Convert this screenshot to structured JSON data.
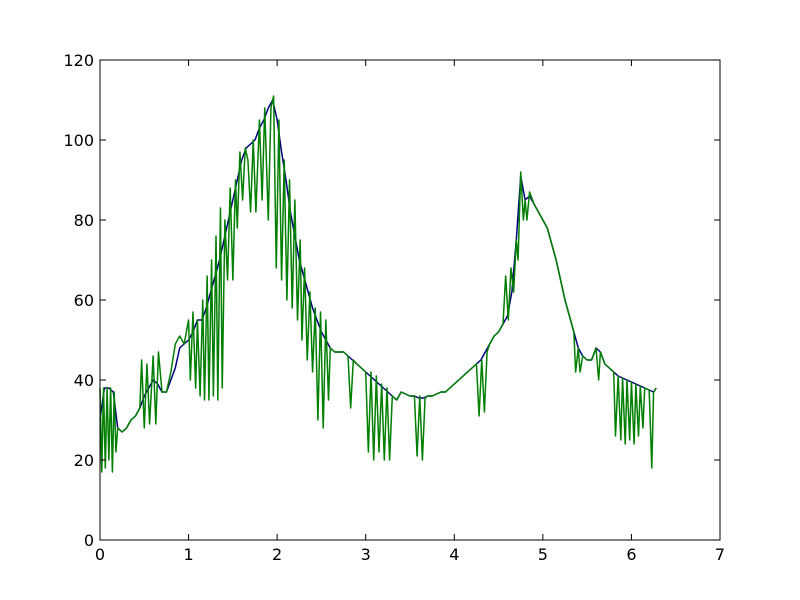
{
  "chart_data": {
    "type": "line",
    "title": "",
    "xlabel": "",
    "ylabel": "",
    "xlim": [
      0,
      7
    ],
    "ylim": [
      0,
      120
    ],
    "grid": false,
    "legend": "none",
    "x_ticks": [
      "0",
      "1",
      "2",
      "3",
      "4",
      "5",
      "6",
      "7"
    ],
    "y_ticks": [
      "0",
      "20",
      "40",
      "60",
      "80",
      "100",
      "120"
    ],
    "series": [
      {
        "color": "#00007f",
        "points": [
          [
            0.0,
            30
          ],
          [
            0.05,
            38
          ],
          [
            0.1,
            38
          ],
          [
            0.15,
            37
          ],
          [
            0.2,
            28
          ],
          [
            0.25,
            27
          ],
          [
            0.3,
            28
          ],
          [
            0.35,
            30
          ],
          [
            0.4,
            31
          ],
          [
            0.45,
            33
          ],
          [
            0.5,
            36
          ],
          [
            0.55,
            38
          ],
          [
            0.6,
            40
          ],
          [
            0.65,
            39
          ],
          [
            0.7,
            37
          ],
          [
            0.75,
            37
          ],
          [
            0.8,
            40
          ],
          [
            0.85,
            43
          ],
          [
            0.9,
            48
          ],
          [
            0.95,
            49
          ],
          [
            1.0,
            50
          ],
          [
            1.05,
            52
          ],
          [
            1.1,
            55
          ],
          [
            1.15,
            55
          ],
          [
            1.2,
            58
          ],
          [
            1.25,
            62
          ],
          [
            1.3,
            66
          ],
          [
            1.35,
            70
          ],
          [
            1.4,
            75
          ],
          [
            1.45,
            80
          ],
          [
            1.5,
            85
          ],
          [
            1.55,
            90
          ],
          [
            1.6,
            95
          ],
          [
            1.65,
            98
          ],
          [
            1.7,
            99
          ],
          [
            1.75,
            100
          ],
          [
            1.8,
            103
          ],
          [
            1.85,
            105
          ],
          [
            1.9,
            108
          ],
          [
            1.95,
            110
          ],
          [
            2.0,
            105
          ],
          [
            2.05,
            97
          ],
          [
            2.1,
            90
          ],
          [
            2.15,
            82
          ],
          [
            2.2,
            76
          ],
          [
            2.25,
            70
          ],
          [
            2.3,
            66
          ],
          [
            2.35,
            62
          ],
          [
            2.4,
            58
          ],
          [
            2.45,
            55
          ],
          [
            2.5,
            52
          ],
          [
            2.55,
            50
          ],
          [
            2.6,
            48
          ],
          [
            2.65,
            47
          ],
          [
            2.7,
            47
          ],
          [
            2.75,
            47
          ],
          [
            2.8,
            46
          ],
          [
            2.85,
            45
          ],
          [
            2.9,
            44
          ],
          [
            2.95,
            43
          ],
          [
            3.0,
            42
          ],
          [
            3.05,
            41
          ],
          [
            3.1,
            40
          ],
          [
            3.15,
            39
          ],
          [
            3.2,
            38
          ],
          [
            3.25,
            37
          ],
          [
            3.3,
            36
          ],
          [
            3.35,
            35
          ],
          [
            3.4,
            37
          ],
          [
            3.45,
            36.5
          ],
          [
            3.5,
            36
          ],
          [
            3.55,
            36
          ],
          [
            3.6,
            35.5
          ],
          [
            3.65,
            35.5
          ],
          [
            3.7,
            36
          ],
          [
            3.75,
            36
          ],
          [
            3.8,
            36.5
          ],
          [
            3.85,
            37
          ],
          [
            3.9,
            37
          ],
          [
            3.95,
            38
          ],
          [
            4.0,
            39
          ],
          [
            4.05,
            40
          ],
          [
            4.1,
            41
          ],
          [
            4.15,
            42
          ],
          [
            4.2,
            43
          ],
          [
            4.25,
            44
          ],
          [
            4.3,
            45
          ],
          [
            4.35,
            47
          ],
          [
            4.4,
            49
          ],
          [
            4.45,
            51
          ],
          [
            4.5,
            52
          ],
          [
            4.55,
            54
          ],
          [
            4.6,
            56
          ],
          [
            4.65,
            62
          ],
          [
            4.7,
            75
          ],
          [
            4.75,
            91
          ],
          [
            4.8,
            85
          ],
          [
            4.85,
            86
          ],
          [
            4.9,
            84
          ],
          [
            4.95,
            82
          ],
          [
            5.0,
            80
          ],
          [
            5.05,
            78
          ],
          [
            5.1,
            74
          ],
          [
            5.15,
            70
          ],
          [
            5.2,
            65
          ],
          [
            5.25,
            60
          ],
          [
            5.3,
            56
          ],
          [
            5.35,
            52
          ],
          [
            5.4,
            48
          ],
          [
            5.45,
            46
          ],
          [
            5.5,
            45
          ],
          [
            5.55,
            45
          ],
          [
            5.6,
            48
          ],
          [
            5.65,
            47
          ],
          [
            5.7,
            44
          ],
          [
            5.75,
            43
          ],
          [
            5.8,
            42
          ],
          [
            5.85,
            41
          ],
          [
            5.9,
            40.5
          ],
          [
            5.95,
            40
          ],
          [
            6.0,
            39.5
          ],
          [
            6.05,
            39
          ],
          [
            6.1,
            38.5
          ],
          [
            6.15,
            38
          ],
          [
            6.2,
            37.5
          ],
          [
            6.25,
            37
          ],
          [
            6.28,
            38
          ]
        ]
      },
      {
        "color": "#007f00",
        "points": [
          [
            0.0,
            38
          ],
          [
            0.02,
            17
          ],
          [
            0.04,
            38
          ],
          [
            0.06,
            18
          ],
          [
            0.08,
            38
          ],
          [
            0.1,
            20
          ],
          [
            0.12,
            38
          ],
          [
            0.14,
            17
          ],
          [
            0.16,
            37
          ],
          [
            0.18,
            22
          ],
          [
            0.2,
            28
          ],
          [
            0.25,
            27
          ],
          [
            0.3,
            28
          ],
          [
            0.35,
            30
          ],
          [
            0.4,
            31
          ],
          [
            0.45,
            33
          ],
          [
            0.47,
            45
          ],
          [
            0.5,
            28
          ],
          [
            0.53,
            44
          ],
          [
            0.56,
            29
          ],
          [
            0.6,
            46
          ],
          [
            0.63,
            29
          ],
          [
            0.66,
            47
          ],
          [
            0.7,
            37
          ],
          [
            0.75,
            37
          ],
          [
            0.8,
            42
          ],
          [
            0.85,
            49
          ],
          [
            0.9,
            51
          ],
          [
            0.95,
            49
          ],
          [
            1.0,
            55
          ],
          [
            1.02,
            40
          ],
          [
            1.05,
            57
          ],
          [
            1.08,
            38
          ],
          [
            1.1,
            55
          ],
          [
            1.13,
            36
          ],
          [
            1.16,
            60
          ],
          [
            1.18,
            35
          ],
          [
            1.21,
            66
          ],
          [
            1.23,
            35
          ],
          [
            1.26,
            70
          ],
          [
            1.28,
            36
          ],
          [
            1.31,
            76
          ],
          [
            1.33,
            35
          ],
          [
            1.36,
            83
          ],
          [
            1.38,
            38
          ],
          [
            1.41,
            80
          ],
          [
            1.44,
            65
          ],
          [
            1.47,
            88
          ],
          [
            1.5,
            65
          ],
          [
            1.53,
            90
          ],
          [
            1.55,
            78
          ],
          [
            1.58,
            97
          ],
          [
            1.61,
            85
          ],
          [
            1.64,
            98
          ],
          [
            1.67,
            95
          ],
          [
            1.7,
            82
          ],
          [
            1.73,
            100
          ],
          [
            1.76,
            82
          ],
          [
            1.8,
            105
          ],
          [
            1.83,
            85
          ],
          [
            1.86,
            108
          ],
          [
            1.9,
            80
          ],
          [
            1.93,
            108
          ],
          [
            1.96,
            111
          ],
          [
            1.99,
            68
          ],
          [
            2.02,
            105
          ],
          [
            2.05,
            65
          ],
          [
            2.08,
            95
          ],
          [
            2.11,
            60
          ],
          [
            2.14,
            90
          ],
          [
            2.17,
            58
          ],
          [
            2.2,
            85
          ],
          [
            2.23,
            55
          ],
          [
            2.26,
            75
          ],
          [
            2.28,
            50
          ],
          [
            2.31,
            68
          ],
          [
            2.34,
            45
          ],
          [
            2.37,
            62
          ],
          [
            2.4,
            42
          ],
          [
            2.43,
            58
          ],
          [
            2.46,
            30
          ],
          [
            2.49,
            57
          ],
          [
            2.52,
            28
          ],
          [
            2.55,
            55
          ],
          [
            2.58,
            35
          ],
          [
            2.6,
            48
          ],
          [
            2.65,
            47
          ],
          [
            2.7,
            47
          ],
          [
            2.75,
            47
          ],
          [
            2.8,
            46
          ],
          [
            2.83,
            33
          ],
          [
            2.86,
            45
          ],
          [
            2.9,
            44
          ],
          [
            2.95,
            43
          ],
          [
            3.0,
            42
          ],
          [
            3.03,
            22
          ],
          [
            3.06,
            42
          ],
          [
            3.09,
            20
          ],
          [
            3.12,
            41
          ],
          [
            3.15,
            22
          ],
          [
            3.18,
            39
          ],
          [
            3.21,
            20
          ],
          [
            3.24,
            38
          ],
          [
            3.27,
            20
          ],
          [
            3.3,
            36
          ],
          [
            3.35,
            35
          ],
          [
            3.4,
            37
          ],
          [
            3.45,
            36.5
          ],
          [
            3.5,
            36
          ],
          [
            3.55,
            36
          ],
          [
            3.58,
            21
          ],
          [
            3.61,
            36
          ],
          [
            3.64,
            20
          ],
          [
            3.67,
            35.5
          ],
          [
            3.7,
            36
          ],
          [
            3.75,
            36
          ],
          [
            3.8,
            36.5
          ],
          [
            3.85,
            37
          ],
          [
            3.9,
            37
          ],
          [
            3.95,
            38
          ],
          [
            4.0,
            39
          ],
          [
            4.05,
            40
          ],
          [
            4.1,
            41
          ],
          [
            4.15,
            42
          ],
          [
            4.2,
            43
          ],
          [
            4.25,
            44
          ],
          [
            4.28,
            31
          ],
          [
            4.31,
            45
          ],
          [
            4.34,
            32
          ],
          [
            4.37,
            47
          ],
          [
            4.4,
            49
          ],
          [
            4.45,
            51
          ],
          [
            4.5,
            52
          ],
          [
            4.55,
            54
          ],
          [
            4.58,
            66
          ],
          [
            4.61,
            55
          ],
          [
            4.64,
            68
          ],
          [
            4.67,
            62
          ],
          [
            4.7,
            75
          ],
          [
            4.72,
            70
          ],
          [
            4.75,
            92
          ],
          [
            4.78,
            80
          ],
          [
            4.8,
            85
          ],
          [
            4.82,
            80
          ],
          [
            4.85,
            87
          ],
          [
            4.9,
            84
          ],
          [
            4.95,
            82
          ],
          [
            5.0,
            80
          ],
          [
            5.05,
            78
          ],
          [
            5.1,
            74
          ],
          [
            5.15,
            70
          ],
          [
            5.2,
            65
          ],
          [
            5.25,
            60
          ],
          [
            5.3,
            56
          ],
          [
            5.35,
            52
          ],
          [
            5.37,
            42
          ],
          [
            5.4,
            48
          ],
          [
            5.42,
            42
          ],
          [
            5.45,
            46
          ],
          [
            5.5,
            45
          ],
          [
            5.55,
            45
          ],
          [
            5.6,
            48
          ],
          [
            5.63,
            40
          ],
          [
            5.65,
            47
          ],
          [
            5.7,
            44
          ],
          [
            5.75,
            43
          ],
          [
            5.8,
            42
          ],
          [
            5.82,
            26
          ],
          [
            5.85,
            41
          ],
          [
            5.88,
            25
          ],
          [
            5.9,
            40.5
          ],
          [
            5.93,
            24
          ],
          [
            5.95,
            40
          ],
          [
            5.98,
            25
          ],
          [
            6.0,
            39.5
          ],
          [
            6.03,
            24
          ],
          [
            6.05,
            39
          ],
          [
            6.08,
            26
          ],
          [
            6.1,
            38.5
          ],
          [
            6.13,
            28
          ],
          [
            6.15,
            38
          ],
          [
            6.2,
            37.5
          ],
          [
            6.23,
            18
          ],
          [
            6.25,
            37
          ],
          [
            6.28,
            38
          ]
        ]
      }
    ]
  }
}
